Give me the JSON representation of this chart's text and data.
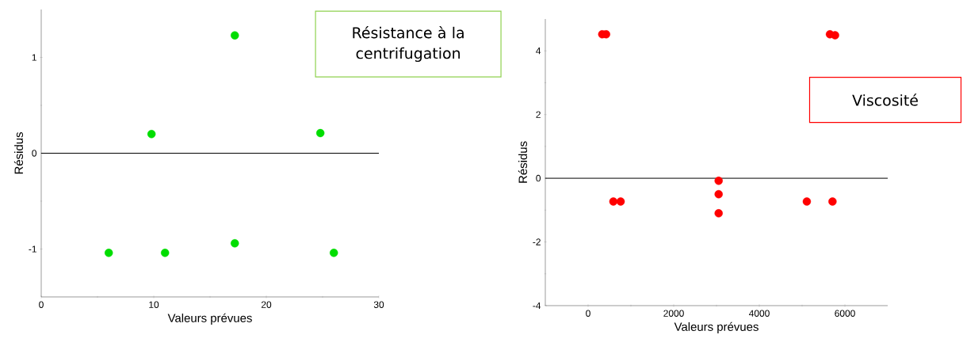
{
  "chart_data": [
    {
      "type": "scatter",
      "title": "Résistance à la centrifugation",
      "xlabel": "Valeurs prévues",
      "ylabel": "Résidus",
      "marker": "circle",
      "x": [
        6.0,
        9.8,
        11.0,
        17.2,
        17.2,
        24.8,
        26.0
      ],
      "series": [
        {
          "color": "#00dd00",
          "values": [
            -1.04,
            0.2,
            -1.04,
            1.23,
            -0.94,
            0.21,
            -1.04
          ]
        }
      ],
      "xlim": [
        0,
        30
      ],
      "xticks": [
        0,
        10,
        20,
        30
      ],
      "ylim": [
        -1.5,
        1.5
      ],
      "yticks": [
        -1,
        0,
        1
      ],
      "ref_lines": [
        {
          "axis": "y",
          "value": 0,
          "color": "#000000"
        }
      ]
    },
    {
      "type": "scatter",
      "title": "Viscosité",
      "xlabel": "Valeurs prévues",
      "ylabel": "Résidus",
      "marker": "circle",
      "x": [
        330,
        420,
        590,
        760,
        3050,
        3050,
        3050,
        5110,
        5650,
        5770,
        5710
      ],
      "series": [
        {
          "color": "#ff0000",
          "values": [
            4.52,
            4.52,
            -0.73,
            -0.73,
            -0.08,
            -0.5,
            -1.1,
            -0.73,
            4.52,
            4.49,
            -0.73
          ]
        }
      ],
      "xlim": [
        -1000,
        7000
      ],
      "xticks": [
        0,
        2000,
        4000,
        6000
      ],
      "ylim": [
        -4,
        5
      ],
      "yticks": [
        -4,
        -2,
        0,
        2,
        4
      ],
      "ref_lines": [
        {
          "axis": "y",
          "value": 0,
          "color": "#000000"
        }
      ]
    }
  ]
}
